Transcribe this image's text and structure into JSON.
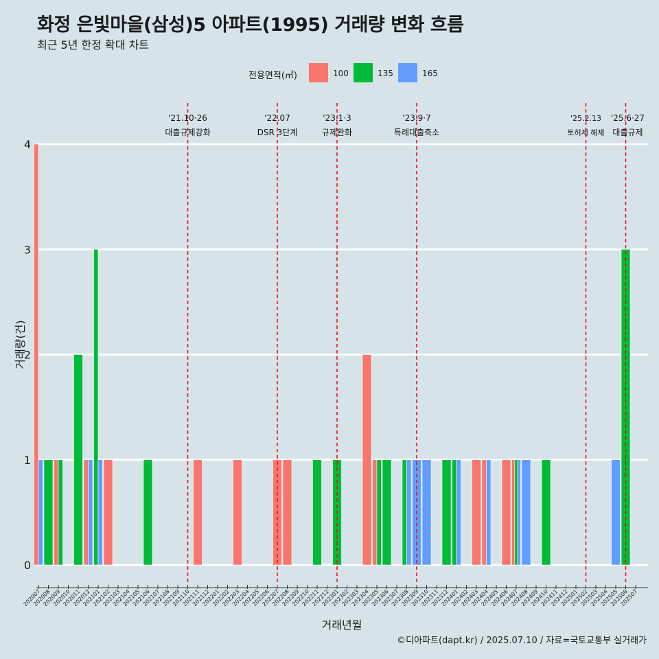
{
  "title": "화정 은빛마을(삼성)5 아파트(1995) 거래량 변화 흐름",
  "subtitle": "최근 5년 한정 확대 차트",
  "caption": "©디아파트(dapt.kr) / 2025.07.10 / 자료=국토교통부 실거래가",
  "colors": {
    "background": "#d6e4ea",
    "100": "#f8766d",
    "135": "#00ba38",
    "165": "#619cff",
    "event_line": "#ee1111"
  },
  "chart_data": {
    "type": "bar",
    "xlabel": "거래년월",
    "ylabel": "거래량(건)",
    "ylim": [
      0,
      4
    ],
    "yticks": [
      "0",
      "1",
      "2",
      "3",
      "4"
    ],
    "grid": "horizontal",
    "legend": {
      "title": "전용면적(㎡)",
      "position": "top",
      "entries": [
        "100",
        "135",
        "165"
      ]
    },
    "categories": [
      "202007",
      "202008",
      "202009",
      "202010",
      "202011",
      "202012",
      "202101",
      "202102",
      "202103",
      "202104",
      "202105",
      "202106",
      "202107",
      "202108",
      "202109",
      "202110",
      "202111",
      "202112",
      "202201",
      "202202",
      "202203",
      "202204",
      "202205",
      "202206",
      "202207",
      "202208",
      "202209",
      "202210",
      "202211",
      "202212",
      "202301",
      "202302",
      "202303",
      "202304",
      "202305",
      "202306",
      "202307",
      "202308",
      "202309",
      "202310",
      "202311",
      "202312",
      "202401",
      "202402",
      "202403",
      "202404",
      "202405",
      "202406",
      "202407",
      "202408",
      "202409",
      "202410",
      "202411",
      "202412",
      "202501",
      "202502",
      "202503",
      "202504",
      "202505",
      "202506",
      "202507"
    ],
    "series": [
      {
        "name": "100",
        "values": [
          4,
          0,
          1,
          0,
          0,
          1,
          0,
          1,
          0,
          0,
          0,
          0,
          0,
          0,
          0,
          0,
          1,
          0,
          0,
          0,
          1,
          0,
          0,
          0,
          1,
          1,
          0,
          0,
          0,
          0,
          0,
          0,
          0,
          2,
          1,
          0,
          0,
          0,
          0,
          0,
          0,
          0,
          0,
          0,
          1,
          1,
          0,
          1,
          1,
          0,
          0,
          0,
          0,
          0,
          0,
          0,
          0,
          0,
          0,
          0,
          0
        ]
      },
      {
        "name": "135",
        "values": [
          0,
          1,
          1,
          0,
          2,
          0,
          3,
          0,
          0,
          0,
          0,
          1,
          0,
          0,
          0,
          0,
          0,
          0,
          0,
          0,
          0,
          0,
          0,
          0,
          0,
          0,
          0,
          0,
          1,
          0,
          1,
          0,
          0,
          0,
          1,
          1,
          0,
          1,
          0,
          0,
          0,
          1,
          1,
          0,
          0,
          0,
          0,
          0,
          1,
          0,
          0,
          1,
          0,
          0,
          0,
          0,
          0,
          0,
          0,
          3,
          0
        ]
      },
      {
        "name": "165",
        "values": [
          1,
          0,
          0,
          0,
          0,
          1,
          1,
          0,
          0,
          0,
          0,
          0,
          0,
          0,
          0,
          0,
          0,
          0,
          0,
          0,
          0,
          0,
          0,
          0,
          0,
          0,
          0,
          0,
          0,
          0,
          0,
          0,
          0,
          0,
          0,
          0,
          0,
          1,
          1,
          1,
          0,
          0,
          1,
          0,
          0,
          1,
          0,
          0,
          1,
          1,
          0,
          0,
          0,
          0,
          0,
          0,
          0,
          0,
          1,
          0,
          0
        ]
      }
    ],
    "events": [
      {
        "date": "'21.10·26",
        "label": "대출규제강화",
        "month": "202110"
      },
      {
        "date": "'22.07",
        "label": "DSR 3단계",
        "month": "202207"
      },
      {
        "date": "'23.1·3",
        "label": "규제완화",
        "month": "202301"
      },
      {
        "date": "'23.9·7",
        "label": "특례대출축소",
        "month": "202309"
      },
      {
        "date": "'25.2.13",
        "label": "토허제 해제",
        "month": "202502"
      },
      {
        "date": "'25.6·27",
        "label": "대출규제",
        "month": "202506"
      }
    ]
  }
}
